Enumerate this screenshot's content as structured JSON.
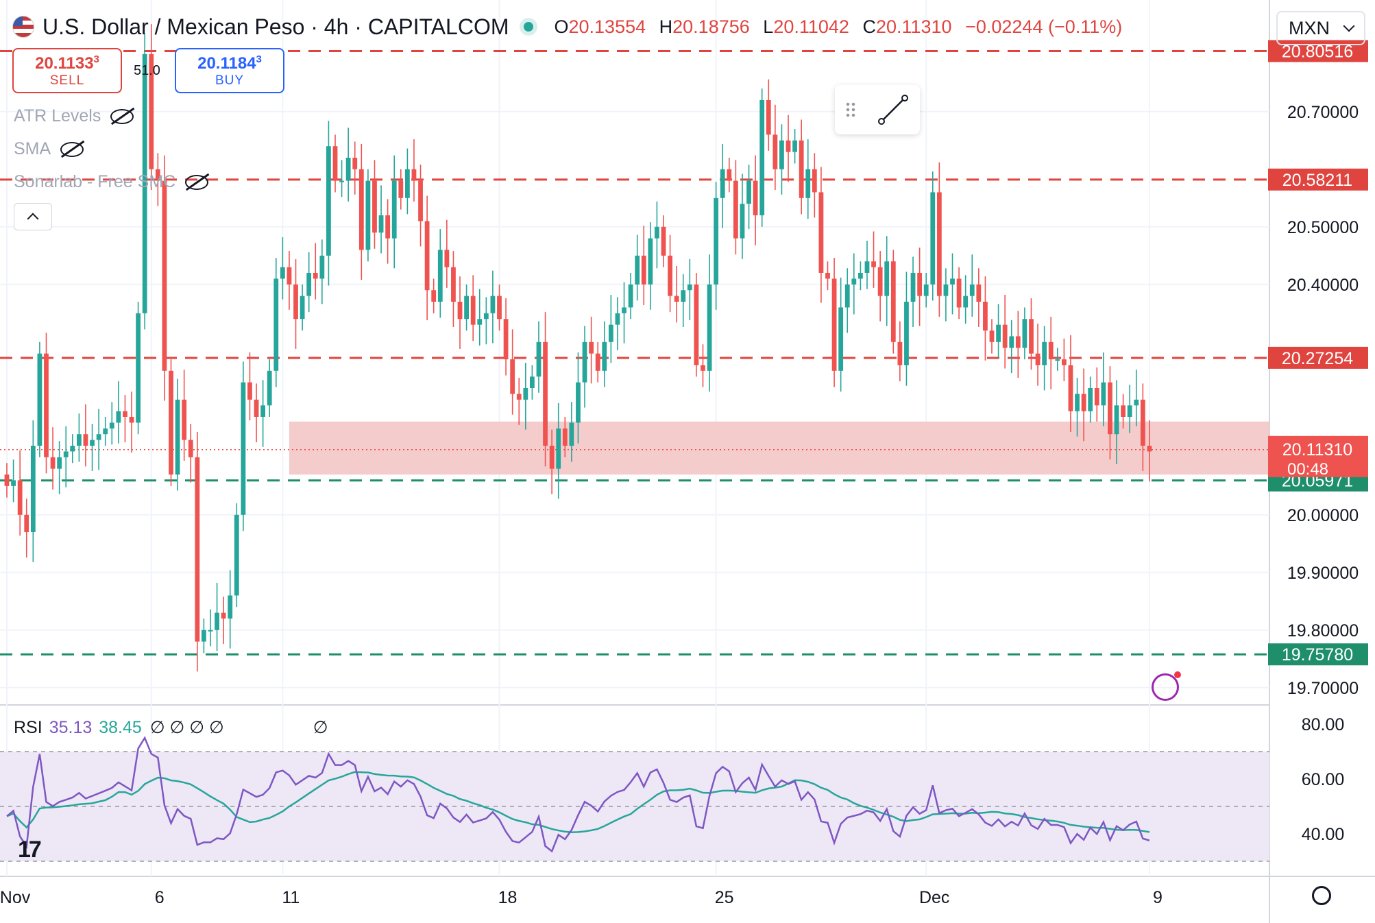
{
  "header": {
    "title": "U.S. Dollar / Mexican Peso · 4h · CAPITALCOM",
    "ohlc": [
      {
        "k": "O",
        "v": "20.13554"
      },
      {
        "k": "H",
        "v": "20.18756"
      },
      {
        "k": "L",
        "v": "20.11042"
      },
      {
        "k": "C",
        "v": "20.11310"
      }
    ],
    "change": "−0.02244 (−0.11%)",
    "currency": "MXN"
  },
  "trade": {
    "sell_price": "20.1133",
    "sell_sup": "3",
    "sell_label": "SELL",
    "spread": "51.0",
    "buy_price": "20.1184",
    "buy_sup": "3",
    "buy_label": "BUY"
  },
  "indicators": [
    "ATR Levels",
    "SMA",
    "Sonarlab - Free SMC"
  ],
  "rsi": {
    "label": "RSI",
    "value": "35.13",
    "sma": "38.45",
    "nulls": "∅ ∅ ∅ ∅",
    "null2": "∅"
  },
  "colors": {
    "up": "#26a69a",
    "down": "#ef5350",
    "red_line": "#e0443f",
    "green_line": "#1e8f6a",
    "zone": "#f4c7c7",
    "rsi": "#7e57c2",
    "rsi_ma": "#26a69a",
    "rsi_band": "#ede7f6"
  },
  "chart_data": {
    "type": "candlestick",
    "symbol": "USD/MXN",
    "timeframe": "4h",
    "ylim": [
      19.67,
      20.87
    ],
    "y_ticks": [
      "20.70000",
      "20.50000",
      "20.40000",
      "20.00000",
      "19.90000",
      "19.80000",
      "19.70000"
    ],
    "x_ticks": [
      {
        "label": "Nov",
        "i": 0
      },
      {
        "label": "6",
        "i": 22
      },
      {
        "label": "11",
        "i": 42
      },
      {
        "label": "18",
        "i": 75
      },
      {
        "label": "25",
        "i": 108
      },
      {
        "label": "Dec",
        "i": 140
      },
      {
        "label": "9",
        "i": 174
      }
    ],
    "levels": [
      {
        "price": 20.80516,
        "label": "20.80516",
        "color": "red"
      },
      {
        "price": 20.58211,
        "label": "20.58211",
        "color": "red"
      },
      {
        "price": 20.27254,
        "label": "20.27254",
        "color": "red"
      },
      {
        "price": 20.05971,
        "label": "20.05971",
        "color": "green"
      },
      {
        "price": 19.7578,
        "label": "19.75780",
        "color": "green"
      }
    ],
    "zone": {
      "from_i": 43,
      "top": 20.162,
      "bottom": 20.07
    },
    "last_price": {
      "price": 20.1131,
      "label": "20.11310",
      "timer": "00:48"
    },
    "closes": [
      20.05,
      20.06,
      20.0,
      19.97,
      20.12,
      20.28,
      20.1,
      20.08,
      20.1,
      20.11,
      20.12,
      20.14,
      20.12,
      20.13,
      20.14,
      20.15,
      20.16,
      20.18,
      20.17,
      20.16,
      20.35,
      20.8,
      20.6,
      20.58,
      20.25,
      20.07,
      20.2,
      20.13,
      20.1,
      19.78,
      19.8,
      19.8,
      19.83,
      19.82,
      19.86,
      20.0,
      20.23,
      20.2,
      20.17,
      20.19,
      20.25,
      20.41,
      20.43,
      20.4,
      20.34,
      20.38,
      20.42,
      20.41,
      20.45,
      20.64,
      20.58,
      20.58,
      20.62,
      20.6,
      20.46,
      20.58,
      20.49,
      20.52,
      20.48,
      20.58,
      20.55,
      20.6,
      20.58,
      20.51,
      20.39,
      20.37,
      20.46,
      20.43,
      20.37,
      20.34,
      20.38,
      20.33,
      20.34,
      20.35,
      20.38,
      20.34,
      20.27,
      20.21,
      20.2,
      20.22,
      20.24,
      20.3,
      20.12,
      20.08,
      20.15,
      20.12,
      20.16,
      20.23,
      20.3,
      20.28,
      20.25,
      20.3,
      20.33,
      20.35,
      20.36,
      20.4,
      20.45,
      20.4,
      20.48,
      20.5,
      20.45,
      20.38,
      20.37,
      20.39,
      20.4,
      20.26,
      20.25,
      20.4,
      20.55,
      20.6,
      20.58,
      20.48,
      20.54,
      20.58,
      20.52,
      20.72,
      20.66,
      20.6,
      20.65,
      20.63,
      20.65,
      20.55,
      20.6,
      20.56,
      20.42,
      20.41,
      20.25,
      20.36,
      20.4,
      20.41,
      20.42,
      20.44,
      20.43,
      20.38,
      20.44,
      20.3,
      20.26,
      20.37,
      20.42,
      20.38,
      20.4,
      20.56,
      20.38,
      20.4,
      20.41,
      20.36,
      20.38,
      20.4,
      20.37,
      20.32,
      20.3,
      20.33,
      20.29,
      20.31,
      20.29,
      20.34,
      20.28,
      20.26,
      20.3,
      20.27,
      20.27,
      20.26,
      20.18,
      20.21,
      20.18,
      20.22,
      20.19,
      20.23,
      20.14,
      20.19,
      20.17,
      20.19,
      20.2,
      20.12,
      20.11
    ]
  }
}
